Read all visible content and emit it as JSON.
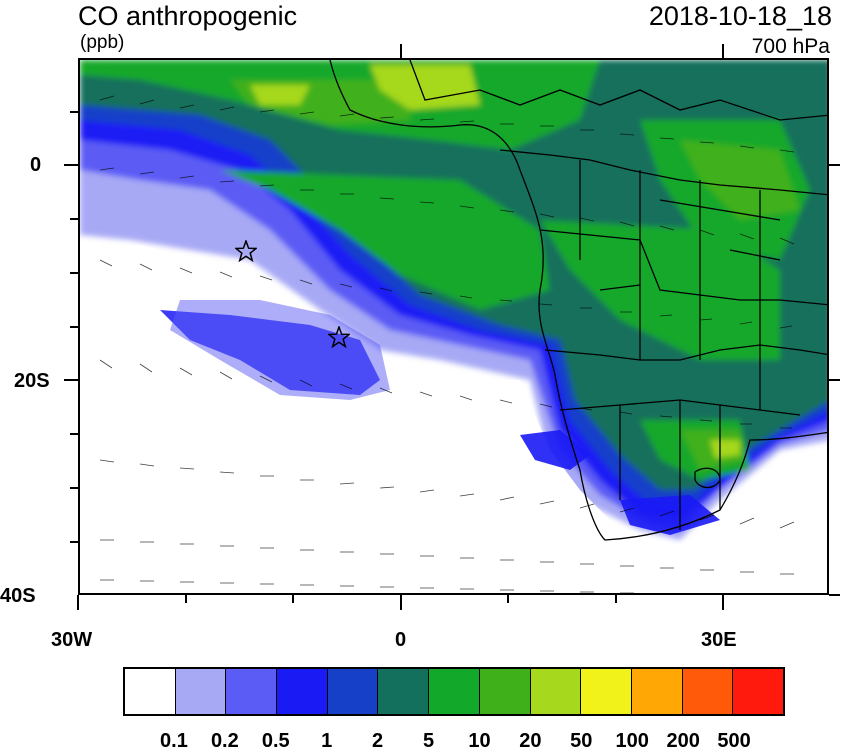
{
  "header": {
    "title": "CO anthropogenic",
    "units": "(ppb)",
    "datetime": "2018-10-18_18",
    "level": "700 hPa"
  },
  "axes": {
    "y_ticks": [
      "0",
      "20S",
      "40S"
    ],
    "x_ticks": [
      "30W",
      "0",
      "30E"
    ]
  },
  "map": {
    "region": "Southern Africa and South Atlantic",
    "layers": [
      "filled CO concentration",
      "wind barbs",
      "country boundaries"
    ],
    "markers": [
      {
        "symbol": "star",
        "lon": -14.5,
        "lat": -8.0
      },
      {
        "symbol": "star",
        "lon": -5.5,
        "lat": -16.0
      }
    ]
  },
  "colorbar": {
    "labels": [
      "0.1",
      "0.2",
      "0.5",
      "1",
      "2",
      "5",
      "10",
      "20",
      "50",
      "100",
      "200",
      "500"
    ],
    "colors": [
      "#ffffff",
      "#a7a9f5",
      "#5b5bf5",
      "#1a1af5",
      "#1740c9",
      "#12705c",
      "#12a82a",
      "#3fb01a",
      "#a6d81e",
      "#f2f21b",
      "#ffa705",
      "#ff5a09",
      "#ff1a0d"
    ]
  }
}
